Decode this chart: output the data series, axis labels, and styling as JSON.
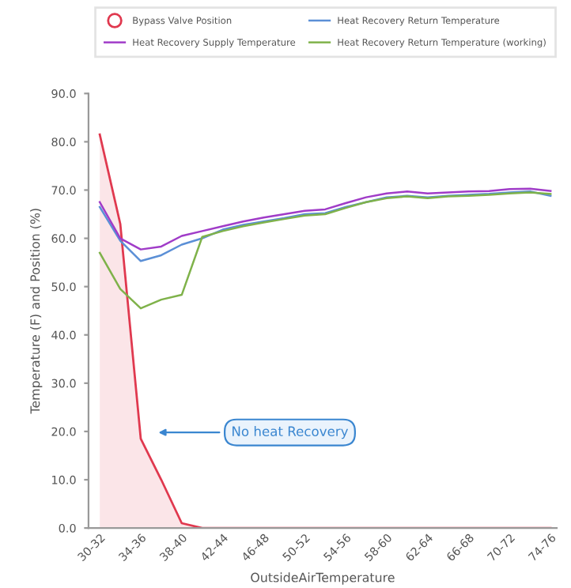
{
  "chart_data": {
    "type": "line",
    "xlabel": "OutsideAirTemperature",
    "ylabel": "Temperature (F) and Position (%)",
    "categories": [
      "30-32",
      null,
      "34-36",
      null,
      "38-40",
      null,
      "42-44",
      null,
      "46-48",
      null,
      "50-52",
      null,
      "54-56",
      null,
      "58-60",
      null,
      "62-64",
      null,
      "66-68",
      null,
      "70-72",
      null,
      "74-76"
    ],
    "series": [
      {
        "name": "Bypass Valve Position",
        "type": "area",
        "color": "#e0394f",
        "values": [
          81.5,
          63,
          18.5,
          10,
          1,
          0,
          0,
          0,
          0,
          0,
          0,
          0,
          0,
          0,
          0,
          0,
          0,
          0,
          0,
          0,
          0,
          0,
          0
        ]
      },
      {
        "name": "Heat Recovery Return Temperature",
        "color": "#5b8fd6",
        "values": [
          66.5,
          59.5,
          55.3,
          56.5,
          58.7,
          60,
          61.8,
          62.8,
          63.5,
          64.2,
          65,
          65.2,
          66.5,
          67.5,
          68.5,
          68.8,
          68.5,
          68.8,
          69,
          69.2,
          69.5,
          69.7,
          68.8
        ]
      },
      {
        "name": "Heat Recovery Supply Temperature",
        "color": "#a03cc8",
        "values": [
          67.5,
          60,
          57.7,
          58.3,
          60.5,
          61.5,
          62.5,
          63.5,
          64.3,
          65,
          65.7,
          66,
          67.3,
          68.5,
          69.3,
          69.7,
          69.3,
          69.5,
          69.7,
          69.8,
          70.2,
          70.3,
          69.8
        ]
      },
      {
        "name": "Heat Recovery Return Temperature (working)",
        "color": "#7fb24a",
        "values": [
          57,
          49.5,
          45.5,
          47.3,
          48.3,
          60.3,
          61.5,
          62.5,
          63.3,
          64,
          64.7,
          65,
          66.3,
          67.5,
          68.3,
          68.7,
          68.3,
          68.7,
          68.8,
          69,
          69.3,
          69.5,
          69.2
        ]
      }
    ],
    "ylim": [
      0,
      90
    ],
    "yticks": [
      {
        "value": 0,
        "label": "0.0"
      },
      {
        "value": 10,
        "label": "10.0"
      },
      {
        "value": 20,
        "label": "20.0"
      },
      {
        "value": 30,
        "label": "30.0"
      },
      {
        "value": 40,
        "label": "40.0"
      },
      {
        "value": 50,
        "label": "50.0"
      },
      {
        "value": 60,
        "label": "60.0"
      },
      {
        "value": 70,
        "label": "70.0"
      },
      {
        "value": 80,
        "label": "80.0"
      },
      {
        "value": 90,
        "label": "90.0"
      }
    ],
    "annotations": [
      "No heat Recovery"
    ],
    "legend": "top",
    "grid": false,
    "marker": "none"
  }
}
